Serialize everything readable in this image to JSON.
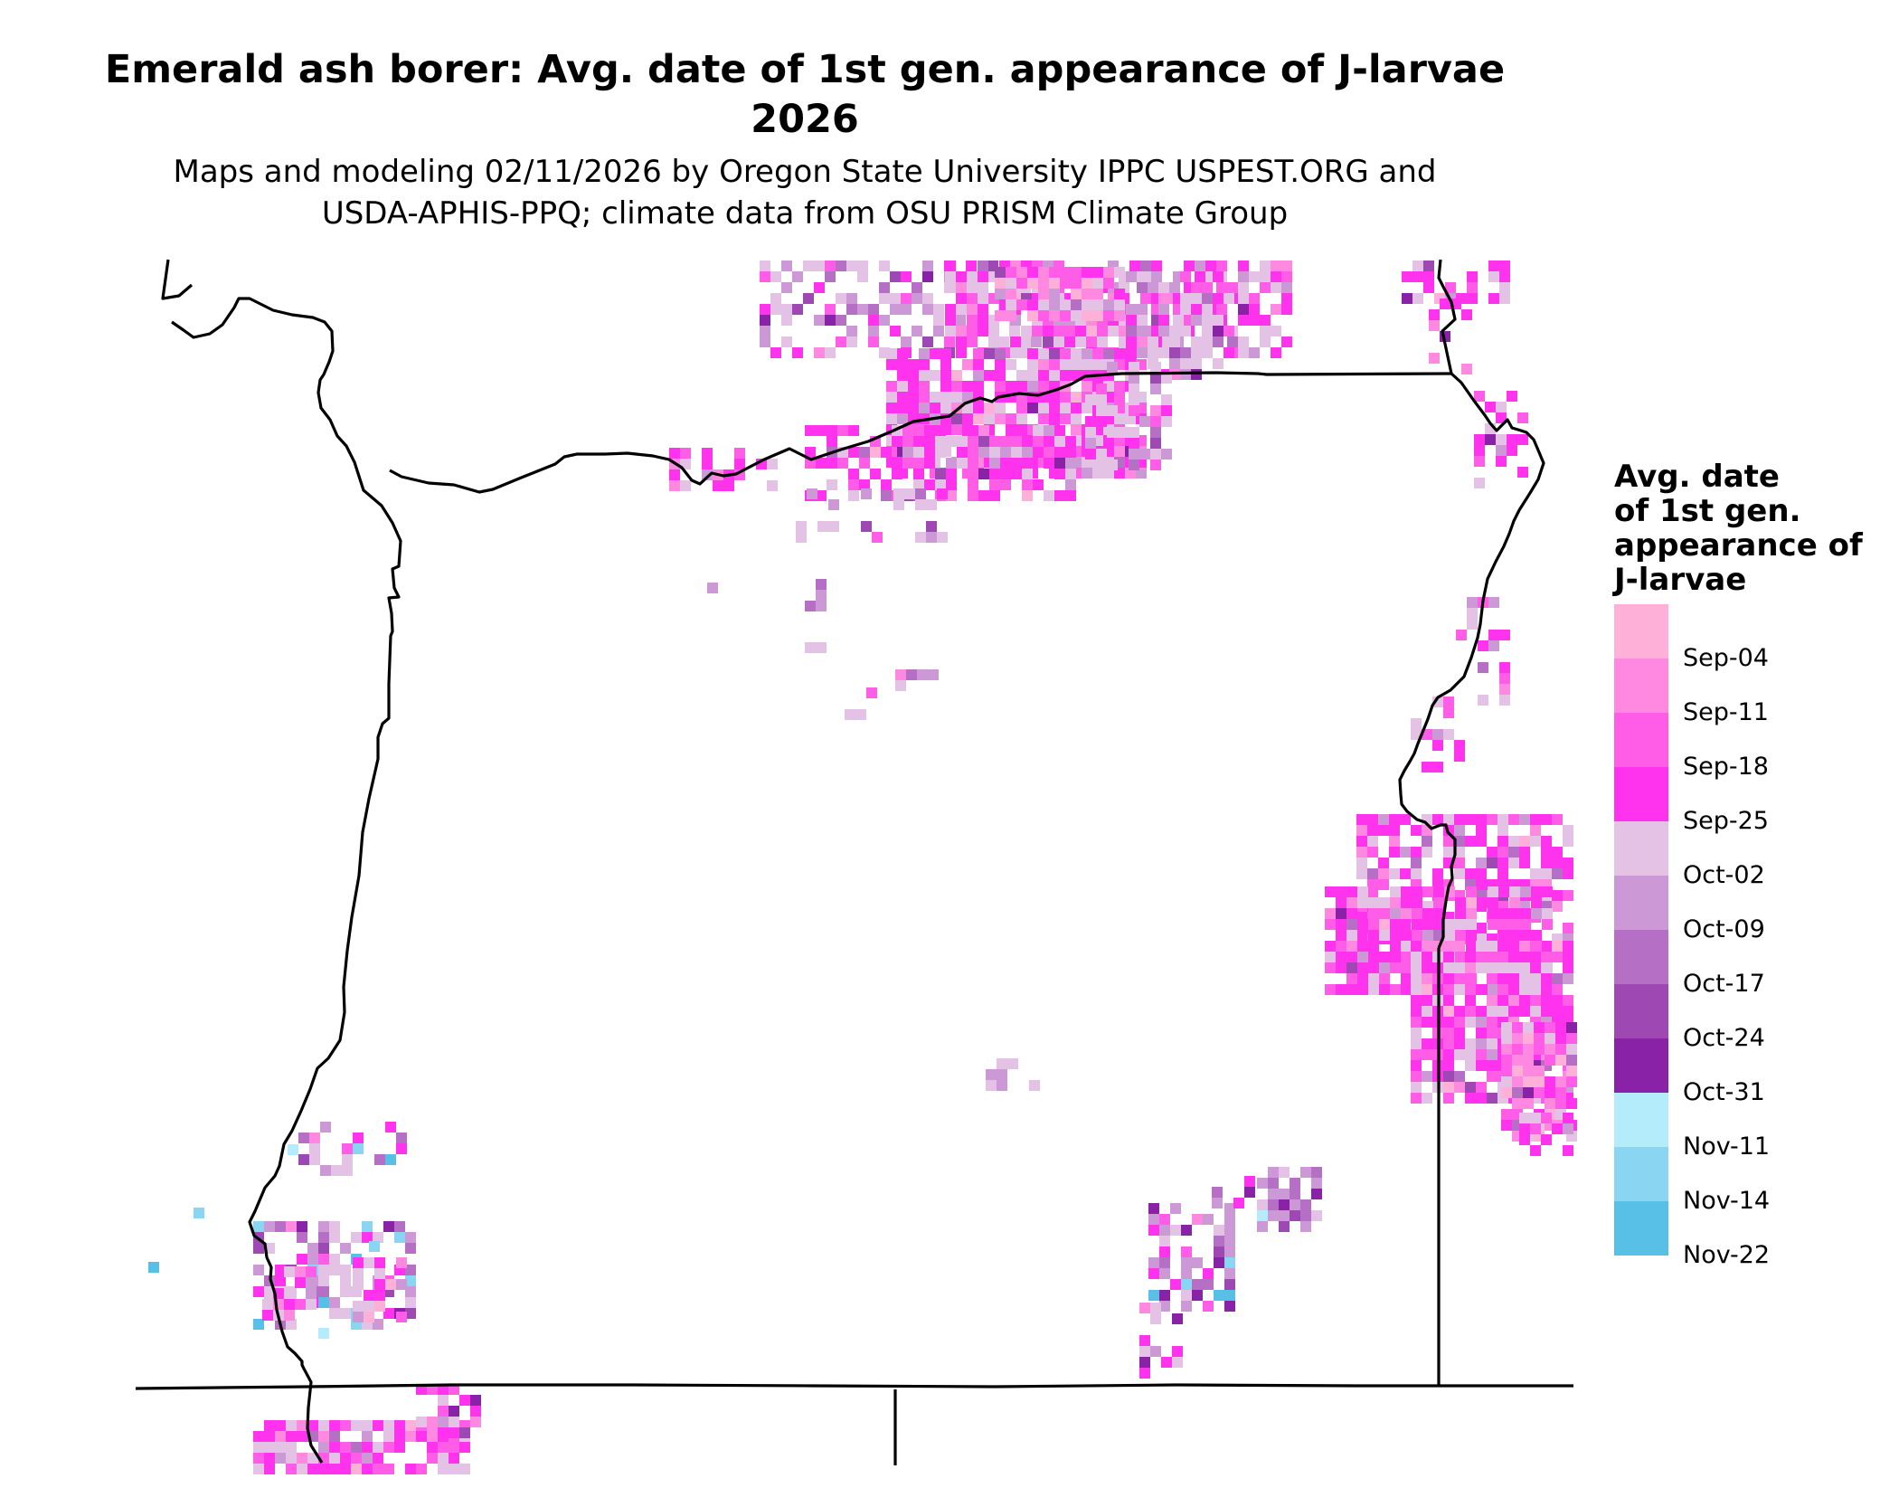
{
  "title": {
    "line1": "Emerald ash borer: Avg. date of 1st gen. appearance of J-larvae",
    "line2": "2026"
  },
  "subtitle": {
    "line1": "Maps and modeling 02/11/2026 by Oregon State University IPPC USPEST.ORG and",
    "line2": "USDA-APHIS-PPQ; climate data from OSU PRISM Climate Group"
  },
  "legend": {
    "title_lines": [
      "Avg. date",
      "of 1st gen.",
      "appearance of",
      "J-larvae"
    ],
    "items": [
      {
        "label": "Sep-04",
        "color": "#ffb0d8"
      },
      {
        "label": "Sep-11",
        "color": "#ff88e0"
      },
      {
        "label": "Sep-18",
        "color": "#ff5ce8"
      },
      {
        "label": "Sep-25",
        "color": "#ff33ee"
      },
      {
        "label": "Oct-02",
        "color": "#e3c2e6"
      },
      {
        "label": "Oct-09",
        "color": "#cc99d6"
      },
      {
        "label": "Oct-17",
        "color": "#b570c6"
      },
      {
        "label": "Oct-24",
        "color": "#9e48b4"
      },
      {
        "label": "Oct-31",
        "color": "#8a22a8"
      },
      {
        "label": "Nov-11",
        "color": "#b5ecfc"
      },
      {
        "label": "Nov-14",
        "color": "#8ad6f2"
      },
      {
        "label": "Nov-22",
        "color": "#58bfe6"
      }
    ]
  }
}
